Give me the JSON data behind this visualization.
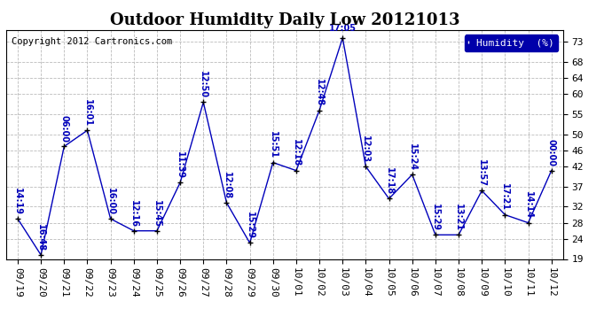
{
  "title": "Outdoor Humidity Daily Low 20121013",
  "copyright": "Copyright 2012 Cartronics.com",
  "legend_label": "Humidity  (%)",
  "ylim": [
    19,
    76
  ],
  "yticks": [
    19,
    24,
    28,
    32,
    37,
    42,
    46,
    50,
    55,
    60,
    64,
    68,
    73
  ],
  "x_labels": [
    "09/19",
    "09/20",
    "09/21",
    "09/22",
    "09/23",
    "09/24",
    "09/25",
    "09/26",
    "09/27",
    "09/28",
    "09/29",
    "09/30",
    "10/01",
    "10/02",
    "10/03",
    "10/04",
    "10/05",
    "10/06",
    "10/07",
    "10/08",
    "10/09",
    "10/10",
    "10/11",
    "10/12"
  ],
  "values": [
    29,
    20,
    47,
    51,
    29,
    26,
    26,
    38,
    58,
    33,
    23,
    43,
    41,
    56,
    74,
    42,
    34,
    40,
    25,
    25,
    36,
    30,
    28,
    41
  ],
  "point_labels": [
    "14:19",
    "16:48",
    "06:00",
    "16:01",
    "16:00",
    "12:16",
    "15:45",
    "11:39",
    "12:50",
    "12:08",
    "15:29",
    "15:51",
    "12:18",
    "12:48",
    "17:05",
    "12:03",
    "17:18",
    "15:24",
    "15:29",
    "13:21",
    "13:57",
    "17:21",
    "14:14",
    "00:00"
  ],
  "line_color": "#0000bb",
  "background_color": "#ffffff",
  "grid_color": "#bbbbbb",
  "title_fontsize": 13,
  "tick_fontsize": 8,
  "annot_fontsize": 7,
  "copyright_fontsize": 7.5
}
